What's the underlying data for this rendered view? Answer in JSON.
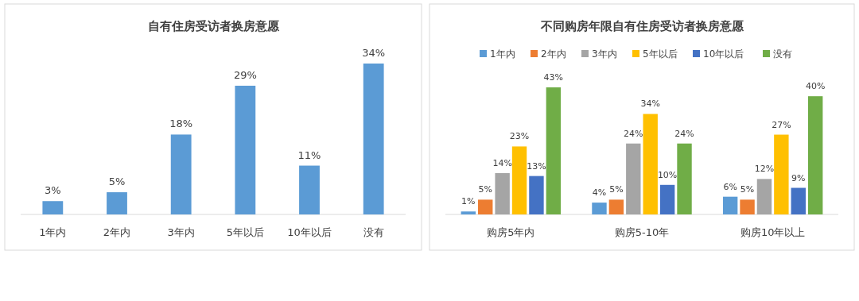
{
  "chart_data": [
    {
      "type": "bar",
      "title": "自有住房受访者换房意愿",
      "categories": [
        "1年内",
        "2年内",
        "3年内",
        "5年以后",
        "10年以后",
        "没有"
      ],
      "series": [
        {
          "color": "#5b9bd5",
          "values": [
            3,
            5,
            18,
            29,
            11,
            34
          ],
          "value_labels": [
            "3%",
            "5%",
            "18%",
            "29%",
            "11%",
            "34%"
          ]
        }
      ],
      "legend": false
    },
    {
      "type": "bar",
      "title": "不同购房年限自有住房受访者换房意愿",
      "categories": [
        "购房5年内",
        "购房5-10年",
        "购房10年以上"
      ],
      "legend": "top",
      "series": [
        {
          "name": "1年内",
          "color": "#5b9bd5",
          "values": [
            1,
            4,
            6
          ],
          "value_labels": [
            "1%",
            "4%",
            "6%"
          ]
        },
        {
          "name": "2年内",
          "color": "#ed7d31",
          "values": [
            5,
            5,
            5
          ],
          "value_labels": [
            "5%",
            "5%",
            "5%"
          ]
        },
        {
          "name": "3年内",
          "color": "#a5a5a5",
          "values": [
            14,
            24,
            12
          ],
          "value_labels": [
            "14%",
            "24%",
            "12%"
          ]
        },
        {
          "name": "5年以后",
          "color": "#ffc000",
          "values": [
            23,
            34,
            27
          ],
          "value_labels": [
            "23%",
            "34%",
            "27%"
          ]
        },
        {
          "name": "10年以后",
          "color": "#4472c4",
          "values": [
            13,
            10,
            9
          ],
          "value_labels": [
            "13%",
            "10%",
            "9%"
          ]
        },
        {
          "name": "没有",
          "color": "#70ad47",
          "values": [
            43,
            24,
            40
          ],
          "value_labels": [
            "43%",
            "24%",
            "40%"
          ]
        }
      ]
    }
  ]
}
